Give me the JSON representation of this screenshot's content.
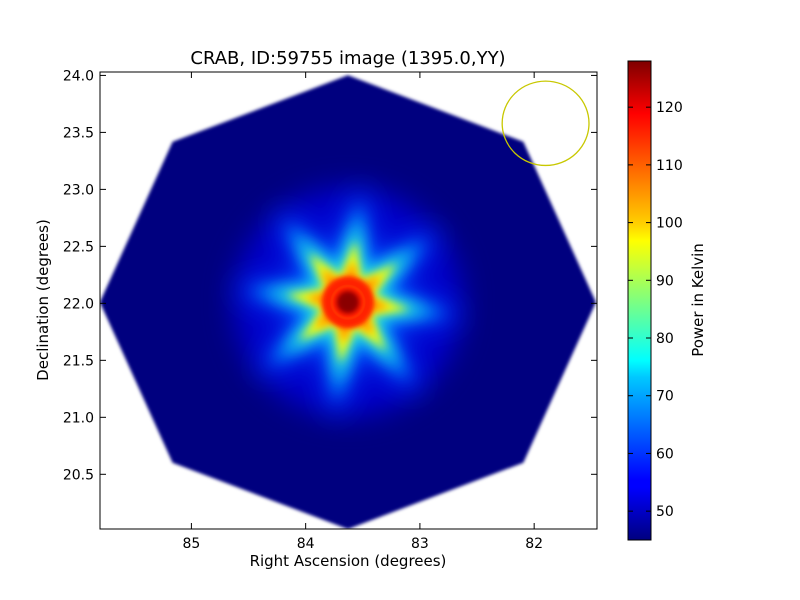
{
  "chart_data": {
    "type": "heatmap",
    "title": "CRAB, ID:59755 image (1395.0,YY)",
    "xlabel": "Right Ascension (degrees)",
    "ylabel": "Declination (degrees)",
    "xlim": [
      85.8,
      81.45
    ],
    "ylim": [
      20.02,
      24.03
    ],
    "x_ticks": [
      85,
      84,
      83,
      82
    ],
    "x_tick_labels": [
      "85",
      "84",
      "83",
      "82"
    ],
    "y_ticks": [
      20.5,
      21.0,
      21.5,
      22.0,
      22.5,
      23.0,
      23.5,
      24.0
    ],
    "y_tick_labels": [
      "20.5",
      "21.0",
      "21.5",
      "22.0",
      "22.5",
      "23.0",
      "23.5",
      "24.0"
    ],
    "colorbar": {
      "label": "Power in Kelvin",
      "range": [
        45,
        128
      ],
      "ticks": [
        50,
        60,
        70,
        80,
        90,
        100,
        110,
        120
      ],
      "tick_labels": [
        "50",
        "60",
        "70",
        "80",
        "90",
        "100",
        "110",
        "120"
      ],
      "colormap": "jet"
    },
    "field": {
      "shape": "octagon",
      "center_ra": 83.63,
      "center_dec": 22.01,
      "background_value": 45
    },
    "source": {
      "ra": 83.63,
      "dec": 22.01,
      "peak_value": 128,
      "pattern": "eight-arm star"
    },
    "beam_marker": {
      "ra": 81.9,
      "dec": 23.58,
      "radius_ra": 0.38,
      "radius_dec": 0.37,
      "color": "#c8c800"
    }
  }
}
